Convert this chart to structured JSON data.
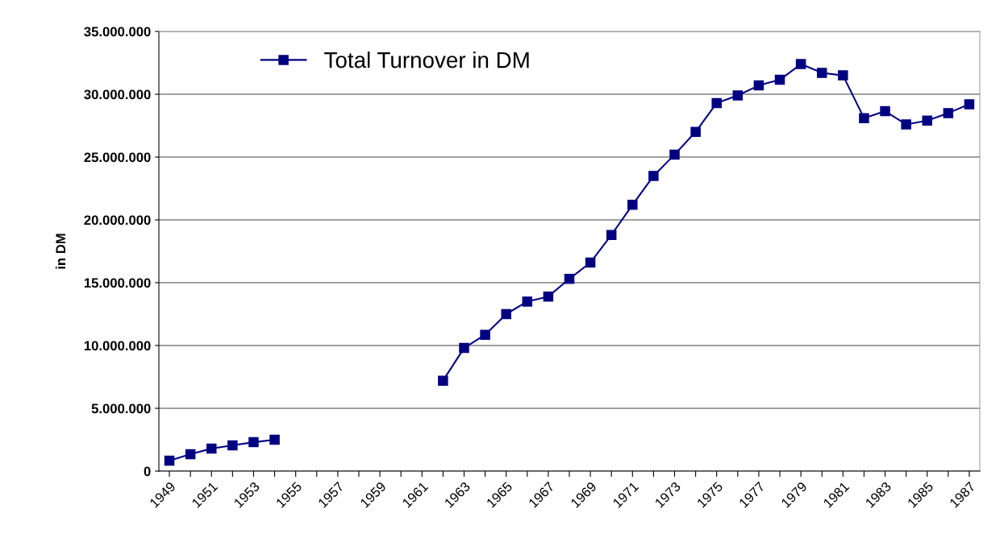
{
  "chart_data": {
    "type": "line",
    "ylabel": "in DM",
    "categories": [
      "1949",
      null,
      "1951",
      null,
      "1953",
      null,
      "1955",
      null,
      "1957",
      null,
      "1959",
      null,
      "1961",
      null,
      "1963",
      null,
      "1965",
      null,
      "1967",
      null,
      "1969",
      null,
      "1971",
      null,
      "1973",
      null,
      "1975",
      null,
      "1977",
      null,
      "1979",
      null,
      "1981",
      null,
      "1983",
      null,
      "1985",
      null,
      "1987"
    ],
    "series": [
      {
        "name": "Total Turnover in DM",
        "color": "#000080",
        "values": [
          830000,
          1350000,
          1800000,
          2050000,
          2300000,
          2500000,
          null,
          null,
          null,
          null,
          null,
          null,
          null,
          7200000,
          9800000,
          10850000,
          12500000,
          13500000,
          13900000,
          15300000,
          16600000,
          18800000,
          21200000,
          23500000,
          25200000,
          27000000,
          29300000,
          29900000,
          30700000,
          31150000,
          32400000,
          31700000,
          31500000,
          28100000,
          28650000,
          27600000,
          27900000,
          28500000,
          29200000
        ]
      }
    ],
    "ylim": [
      0,
      35000000
    ],
    "yticks": [
      {
        "value": 0,
        "label": "0"
      },
      {
        "value": 5000000,
        "label": "5.000.000"
      },
      {
        "value": 10000000,
        "label": "10.000.000"
      },
      {
        "value": 15000000,
        "label": "15.000.000"
      },
      {
        "value": 20000000,
        "label": "20.000.000"
      },
      {
        "value": 25000000,
        "label": "25.000.000"
      },
      {
        "value": 30000000,
        "label": "30.000.000"
      },
      {
        "value": 35000000,
        "label": "35.000.000"
      }
    ],
    "grid": "y",
    "legend": "top left",
    "marker": "square",
    "line_style": "solid"
  }
}
